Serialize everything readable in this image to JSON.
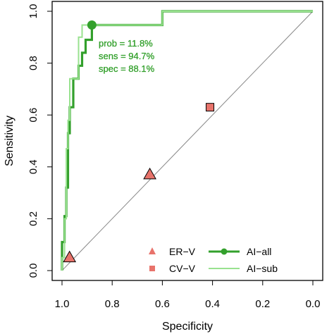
{
  "chart_data": {
    "type": "line",
    "xlabel": "Specificity",
    "ylabel": "Sensitivity",
    "xlim": [
      1.0,
      0.0
    ],
    "ylim": [
      0.0,
      1.0
    ],
    "x_reversed": true,
    "grid": false,
    "legend_position": "bottom-right",
    "x_ticks": [
      "1.0",
      "0.8",
      "0.6",
      "0.4",
      "0.2",
      "0.0"
    ],
    "y_ticks": [
      "0.0",
      "0.2",
      "0.4",
      "0.6",
      "0.8",
      "1.0"
    ],
    "reference_line": {
      "from": [
        1.0,
        0.0
      ],
      "to": [
        0.0,
        1.0
      ],
      "color": "#888888"
    },
    "series": [
      {
        "name": "AI−all",
        "color": "#33A02C",
        "points": [
          [
            1.0,
            0.0
          ],
          [
            1.0,
            0.11
          ],
          [
            0.99,
            0.11
          ],
          [
            0.99,
            0.21
          ],
          [
            0.983,
            0.21
          ],
          [
            0.983,
            0.32
          ],
          [
            0.976,
            0.32
          ],
          [
            0.976,
            0.53
          ],
          [
            0.969,
            0.53
          ],
          [
            0.969,
            0.63
          ],
          [
            0.955,
            0.63
          ],
          [
            0.955,
            0.74
          ],
          [
            0.934,
            0.74
          ],
          [
            0.934,
            0.79
          ],
          [
            0.92,
            0.79
          ],
          [
            0.92,
            0.84
          ],
          [
            0.906,
            0.84
          ],
          [
            0.906,
            0.89
          ],
          [
            0.881,
            0.89
          ],
          [
            0.881,
            0.947
          ],
          [
            0.6,
            0.947
          ],
          [
            0.6,
            1.0
          ],
          [
            0.0,
            1.0
          ]
        ]
      },
      {
        "name": "AI−sub",
        "color": "#99E28F",
        "points": [
          [
            1.0,
            0.0
          ],
          [
            1.0,
            0.05
          ],
          [
            0.99,
            0.05
          ],
          [
            0.99,
            0.2
          ],
          [
            0.983,
            0.2
          ],
          [
            0.983,
            0.47
          ],
          [
            0.976,
            0.47
          ],
          [
            0.976,
            0.58
          ],
          [
            0.969,
            0.58
          ],
          [
            0.969,
            0.74
          ],
          [
            0.934,
            0.74
          ],
          [
            0.934,
            0.9
          ],
          [
            0.92,
            0.9
          ],
          [
            0.92,
            0.947
          ],
          [
            0.88,
            0.947
          ],
          [
            0.88,
            0.947
          ],
          [
            0.6,
            0.947
          ],
          [
            0.6,
            1.0
          ],
          [
            0.0,
            1.0
          ]
        ]
      }
    ],
    "operating_point": {
      "series": "AI−all",
      "specificity": 0.881,
      "sensitivity": 0.947,
      "color": "#33A02C",
      "labels": [
        "prob = 11.8%",
        "sens = 94.7%",
        "spec = 88.1%"
      ]
    },
    "markers": [
      {
        "name": "ER−V",
        "shape": "triangle",
        "color": "#E8736B",
        "points": [
          [
            0.97,
            0.05
          ],
          [
            0.65,
            0.37
          ]
        ]
      },
      {
        "name": "CV−V",
        "shape": "square",
        "color": "#E8736B",
        "points": [
          [
            0.41,
            0.63
          ]
        ]
      }
    ],
    "legend": [
      {
        "label": "ER−V",
        "kind": "triangle",
        "color": "#E8736B"
      },
      {
        "label": "CV−V",
        "kind": "square",
        "color": "#E8736B"
      },
      {
        "label": "AI−all",
        "kind": "line-point",
        "color": "#33A02C"
      },
      {
        "label": "AI−sub",
        "kind": "line",
        "color": "#99E28F"
      }
    ]
  }
}
